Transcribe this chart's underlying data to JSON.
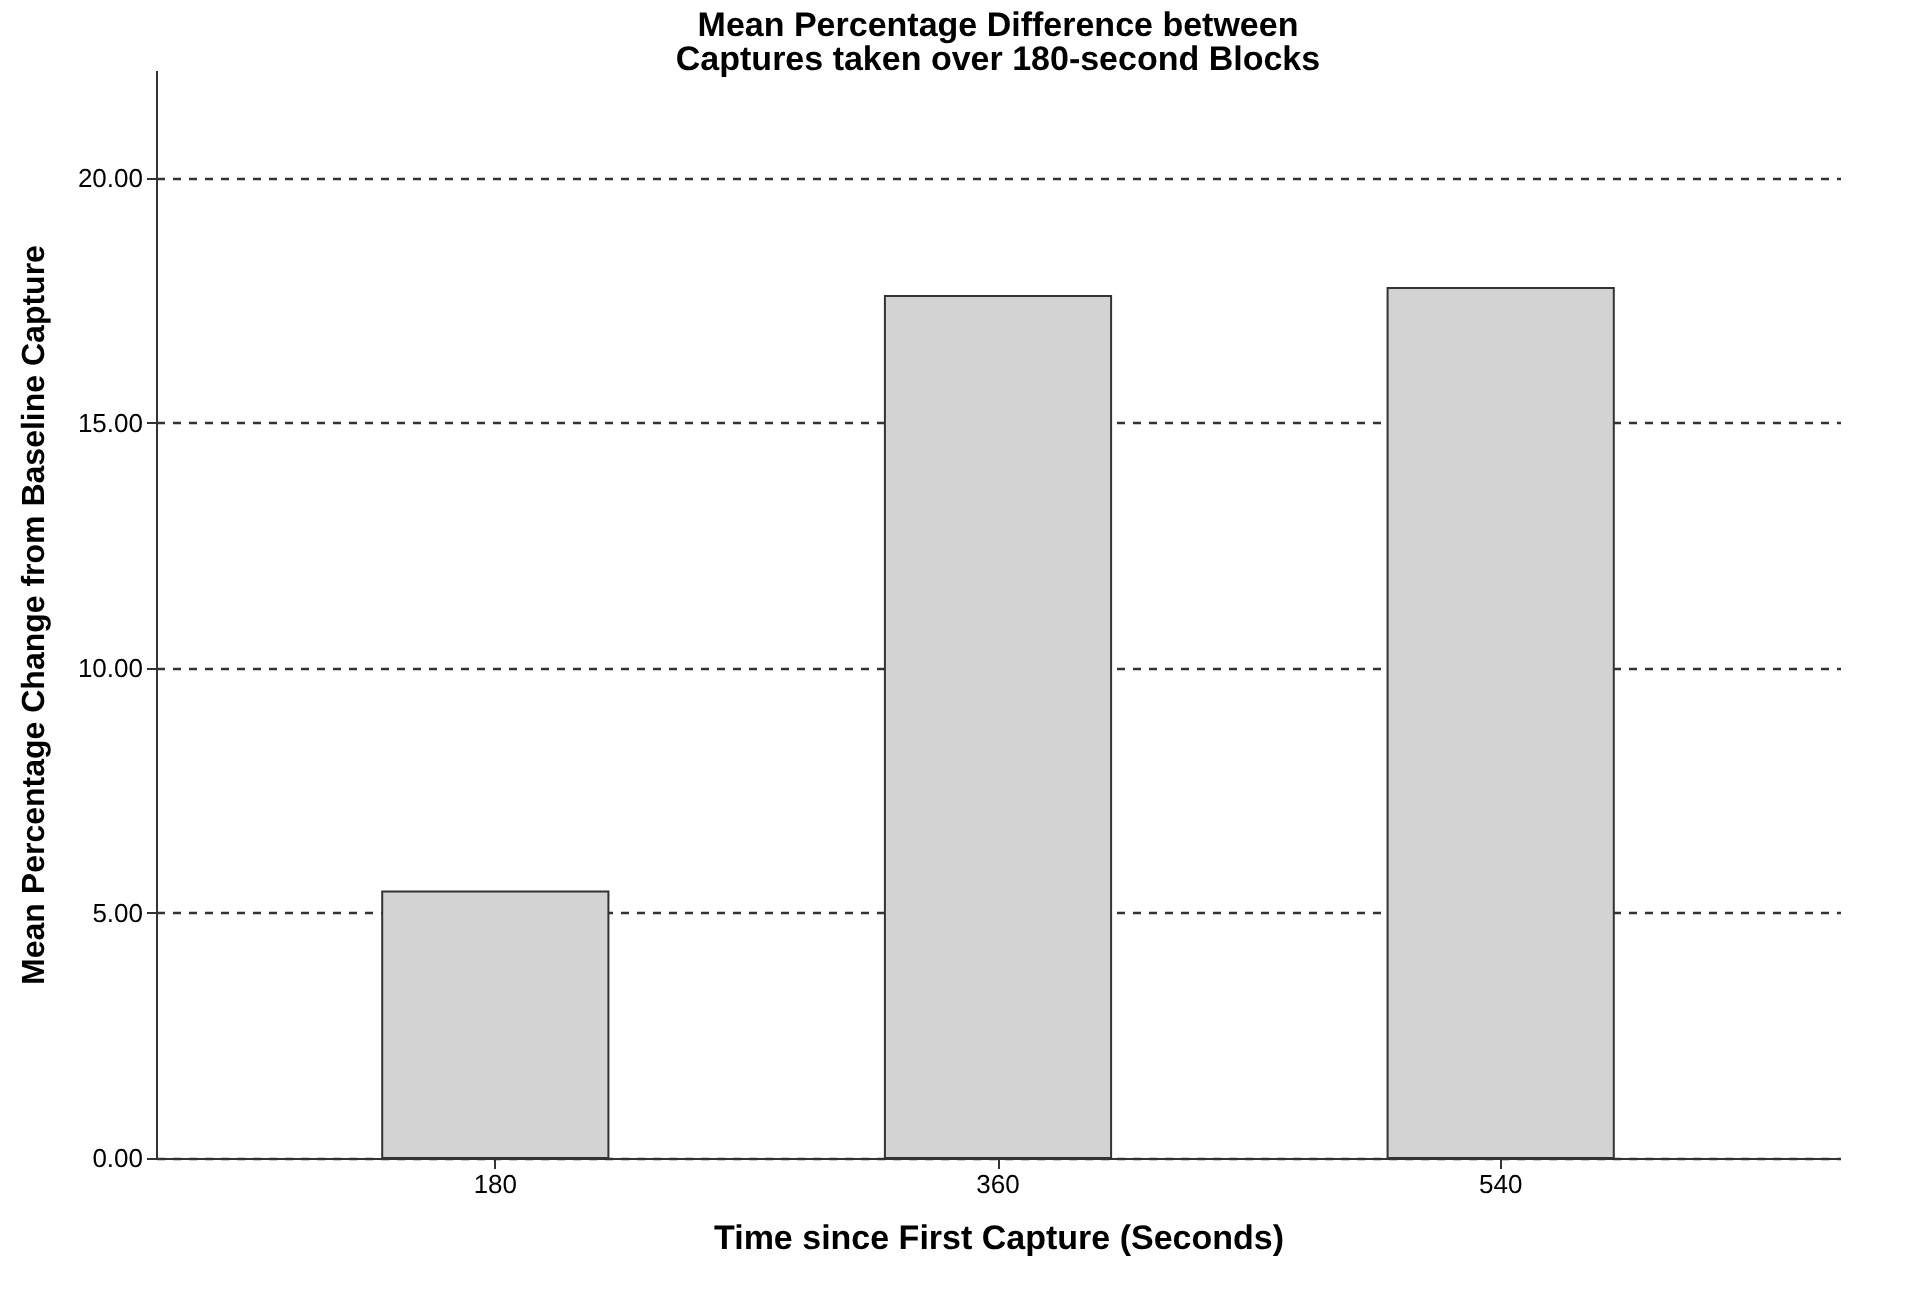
{
  "chart_data": {
    "type": "bar",
    "title": [
      "Mean Percentage Difference between",
      "Captures taken over 180-second Blocks"
    ],
    "xlabel": "Time since First Capture (Seconds)",
    "ylabel": "Mean Percentage Change from Baseline Capture",
    "categories": [
      "180",
      "360",
      "540"
    ],
    "values": [
      5.44,
      17.59,
      17.75
    ],
    "color": "#d3d3d3",
    "ylim": [
      0,
      22.2
    ],
    "yticks": [
      {
        "value": 0,
        "label": "0.00"
      },
      {
        "value": 5,
        "label": "5.00"
      },
      {
        "value": 10,
        "label": "10.00"
      },
      {
        "value": 15,
        "label": "15.00"
      },
      {
        "value": 20,
        "label": "20.00"
      }
    ],
    "grid": "y"
  }
}
